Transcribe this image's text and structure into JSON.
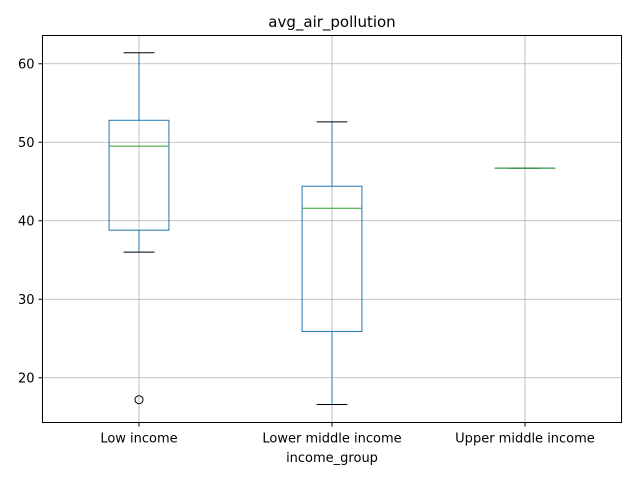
{
  "chart_data": {
    "type": "box",
    "title": "avg_air_pollution",
    "xlabel": "income_group",
    "ylabel": "",
    "ylim": [
      14.3,
      63.6
    ],
    "yticks": [
      20,
      30,
      40,
      50,
      60
    ],
    "ytick_labels": [
      "20",
      "30",
      "40",
      "50",
      "60"
    ],
    "categories": [
      "Low income",
      "Lower middle income",
      "Upper middle income"
    ],
    "boxes": [
      {
        "whisker_low": 36.0,
        "q1": 38.8,
        "median": 49.5,
        "q3": 52.8,
        "whisker_high": 61.4,
        "outliers": [
          17.2
        ]
      },
      {
        "whisker_low": 16.6,
        "q1": 25.9,
        "median": 41.6,
        "q3": 44.4,
        "whisker_high": 52.6,
        "outliers": []
      },
      {
        "whisker_low": 46.7,
        "q1": 46.7,
        "median": 46.7,
        "q3": 46.7,
        "whisker_high": 46.7,
        "outliers": []
      }
    ],
    "grid": true,
    "colors": {
      "box": "#1f77b4",
      "median": "#2ca02c",
      "whisker_cap": "#000000",
      "grid": "#b0b0b0",
      "axes": "#000000"
    }
  }
}
